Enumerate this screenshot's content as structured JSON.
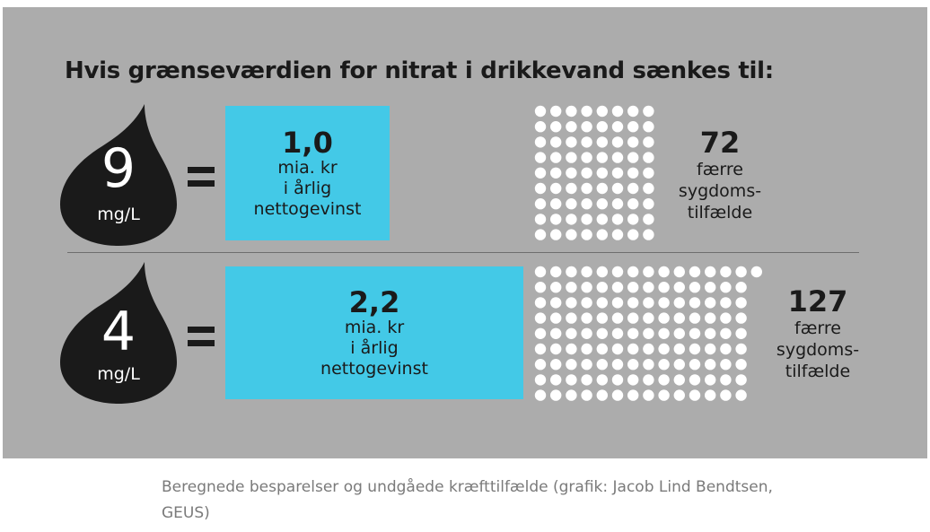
{
  "title": "Hvis grænseværdien for nitrat i drikkevand sænkes til:",
  "caption": "Beregnede besparelser og undgåede kræfttilfælde (grafik: Jacob Lind Bendtsen, GEUS)",
  "rows": [
    {
      "limit": "9",
      "unit": "mg/L",
      "gain_value": "1,0",
      "gain_lines": [
        "mia. kr",
        "i årlig",
        "nettogevinst"
      ],
      "cases_value": "72",
      "cases_lines": [
        "færre",
        "sygdoms-",
        "tilfælde"
      ]
    },
    {
      "limit": "4",
      "unit": "mg/L",
      "gain_value": "2,2",
      "gain_lines": [
        "mia. kr",
        "i årlig",
        "nettogevinst"
      ],
      "cases_value": "127",
      "cases_lines": [
        "færre",
        "sygdoms-",
        "tilfælde"
      ]
    }
  ],
  "colors": {
    "panel": "#acacac",
    "box": "#43c9e7",
    "drop": "#1a1a1a",
    "dot": "#ffffff",
    "text": "#1a1a1a",
    "caption": "#7a7a7a"
  },
  "chart_data": {
    "type": "bar",
    "categories": [
      "9 mg/L",
      "4 mg/L"
    ],
    "series": [
      {
        "values": [
          1.0,
          2.2
        ]
      },
      {
        "values": [
          72,
          127
        ]
      }
    ],
    "title": "Hvis grænseværdien for nitrat i drikkevand sænkes til:"
  }
}
